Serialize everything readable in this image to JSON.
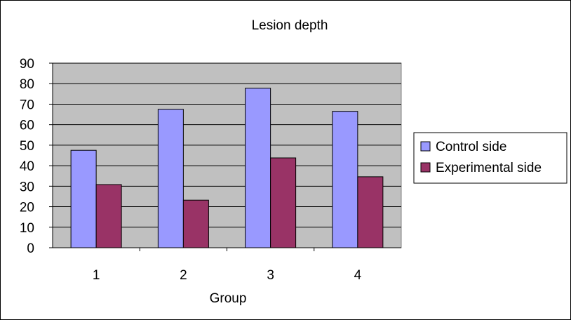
{
  "chart_data": {
    "type": "bar",
    "title": "Lesion depth",
    "xlabel": "Group",
    "ylabel": "",
    "categories": [
      "1",
      "2",
      "3",
      "4"
    ],
    "series": [
      {
        "name": "Control side",
        "values": [
          47.5,
          67.5,
          77.8,
          66.5
        ],
        "color": "#9999ff"
      },
      {
        "name": "Experimental side",
        "values": [
          30.8,
          23.2,
          43.8,
          34.6
        ],
        "color": "#993366"
      }
    ],
    "ylim": [
      0,
      90
    ],
    "yticks": [
      0,
      10,
      20,
      30,
      40,
      50,
      60,
      70,
      80,
      90
    ],
    "grid": true,
    "plot_background": "#c0c0c0",
    "legend_position": "right"
  }
}
